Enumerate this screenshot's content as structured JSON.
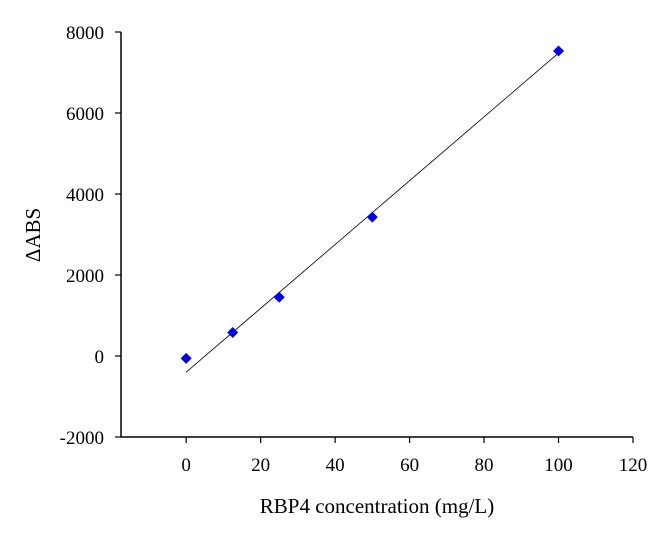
{
  "chart_data": {
    "type": "scatter",
    "title": "",
    "xlabel": "RBP4 concentration (mg/L)",
    "ylabel": "ΔABS",
    "xlim": [
      -17.5,
      120
    ],
    "ylim": [
      -2000,
      8000
    ],
    "xticks": [
      0,
      20,
      40,
      60,
      80,
      100,
      120
    ],
    "yticks": [
      -2000,
      0,
      2000,
      4000,
      6000,
      8000
    ],
    "grid": false,
    "legend": "none",
    "marker": "diamond",
    "marker_color": "#0000EE",
    "line_color": "#000000",
    "points": [
      {
        "x": 0,
        "y": -60
      },
      {
        "x": 12.5,
        "y": 580
      },
      {
        "x": 25,
        "y": 1450
      },
      {
        "x": 50,
        "y": 3430
      },
      {
        "x": 100,
        "y": 7530
      }
    ],
    "trendline": {
      "type": "linear",
      "x_range": [
        0,
        100
      ],
      "y_start": -400,
      "y_end": 7480
    }
  }
}
